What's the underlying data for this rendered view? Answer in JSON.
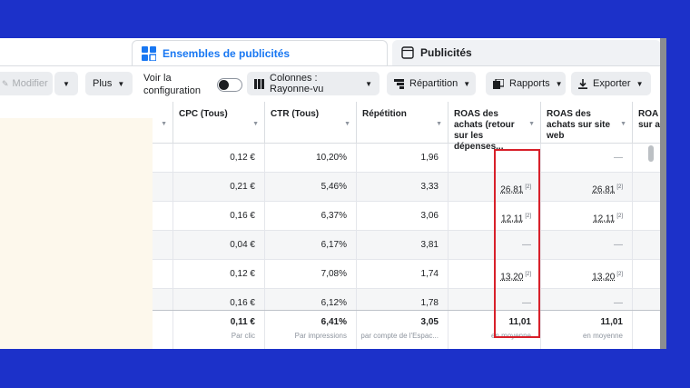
{
  "tabs": {
    "ad_sets": "Ensembles de publicités",
    "ads": "Publicités"
  },
  "toolbar": {
    "modify": "Modifier",
    "more": "Plus",
    "view_config": "Voir la configuration",
    "columns": "Colonnes : Rayonne-vu",
    "breakdown": "Répartition",
    "reports": "Rapports",
    "export": "Exporter"
  },
  "table": {
    "headers": {
      "cpc": "CPC (Tous)",
      "ctr": "CTR (Tous)",
      "freq": "Répétition",
      "roas": "ROAS des achats (retour sur les dépenses...",
      "roas_web": "ROAS des achats sur site web",
      "roas_cut": "ROA sur a"
    },
    "rows": [
      {
        "cpc": "0,12 €",
        "ctr": "10,20%",
        "freq": "1,96",
        "roas": "",
        "roas_web": "—"
      },
      {
        "cpc": "0,21 €",
        "ctr": "5,46%",
        "freq": "3,33",
        "roas": "26,81",
        "roas_web": "26,81"
      },
      {
        "cpc": "0,16 €",
        "ctr": "6,37%",
        "freq": "3,06",
        "roas": "12,11",
        "roas_web": "12,11"
      },
      {
        "cpc": "0,04 €",
        "ctr": "6,17%",
        "freq": "3,81",
        "roas": "—",
        "roas_web": "—"
      },
      {
        "cpc": "0,12 €",
        "ctr": "7,08%",
        "freq": "1,74",
        "roas": "13,20",
        "roas_web": "13,20"
      },
      {
        "cpc": "0,16 €",
        "ctr": "6,12%",
        "freq": "1,78",
        "roas": "—",
        "roas_web": "—"
      }
    ],
    "footnote": "[2]",
    "totals": {
      "cpc": "0,11 €",
      "cpc_sub": "Par clic",
      "ctr": "6,41%",
      "ctr_sub": "Par impressions",
      "freq": "3,05",
      "freq_sub": "par compte de l'Espac...",
      "roas": "11,01",
      "roas_sub": "en moyenne",
      "roas_web": "11,01",
      "roas_web_sub": "en moyenne"
    }
  },
  "colors": {
    "accent": "#1877f2",
    "highlight": "#d8202a",
    "background": "#1c31c9"
  },
  "icons": [
    "grid-icon",
    "ad-page-icon",
    "pencil-icon",
    "columns-icon",
    "breakdown-icon",
    "reports-icon",
    "download-icon",
    "caret-down-icon"
  ]
}
